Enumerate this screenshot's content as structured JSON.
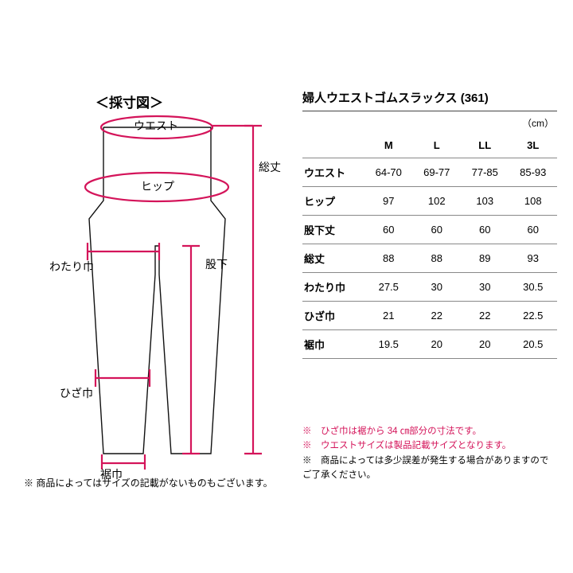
{
  "diagram": {
    "title": "＜採寸図＞",
    "labels": {
      "waist": "ウエスト",
      "hip": "ヒップ",
      "thigh": "わたり巾",
      "knee": "ひざ巾",
      "hem": "裾巾",
      "inseam": "股下",
      "total_length": "総丈"
    },
    "stroke_red": "#d4145a",
    "stroke_black": "#111111",
    "stroke_width_red": 2.2,
    "stroke_width_black": 1.4,
    "footnote": "※ 商品によってはサイズの記載がないものもございます。"
  },
  "table": {
    "title": "婦人ウエストゴムスラックス (361)",
    "unit": "（cm）",
    "columns": [
      "M",
      "L",
      "LL",
      "3L"
    ],
    "rows": [
      {
        "label": "ウエスト",
        "values": [
          "64-70",
          "69-77",
          "77-85",
          "85-93"
        ]
      },
      {
        "label": "ヒップ",
        "values": [
          "97",
          "102",
          "103",
          "108"
        ]
      },
      {
        "label": "股下丈",
        "values": [
          "60",
          "60",
          "60",
          "60"
        ]
      },
      {
        "label": "総丈",
        "values": [
          "88",
          "88",
          "89",
          "93"
        ]
      },
      {
        "label": "わたり巾",
        "values": [
          "27.5",
          "30",
          "30",
          "30.5"
        ]
      },
      {
        "label": "ひざ巾",
        "values": [
          "21",
          "22",
          "22",
          "22.5"
        ]
      },
      {
        "label": "裾巾",
        "values": [
          "19.5",
          "20",
          "20",
          "20.5"
        ]
      }
    ],
    "header_fontsize": 13,
    "cell_fontsize": 13,
    "border_color": "#888888"
  },
  "notes": [
    {
      "text": "※　ひざ巾は裾から 34 ㎝部分の寸法です。",
      "color": "red"
    },
    {
      "text": "※　ウエストサイズは製品記載サイズとなります。",
      "color": "red"
    },
    {
      "text": "※　商品によっては多少誤差が発生する場合がありますのでご了承ください。",
      "color": "black"
    }
  ]
}
